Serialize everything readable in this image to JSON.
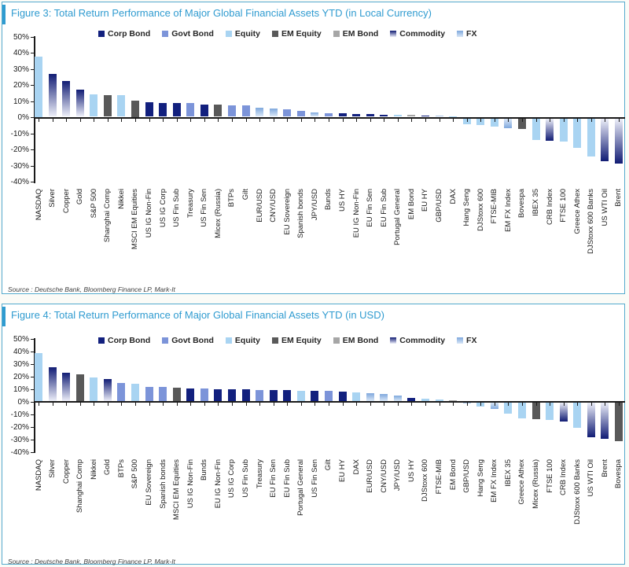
{
  "colors": {
    "corp_bond": "#12207E",
    "govt_bond": "#7C94D9",
    "equity": "#A9D4F2",
    "em_equity": "#595959",
    "em_bond": "#A6A6A6",
    "commodity_dark": "#111C74",
    "commodity_light": "#EDEFF9",
    "fx_dark": "#7FA8DD",
    "fx_light": "#D9E7F7",
    "title_blue": "#2F9BD0",
    "panel_border": "#55AACD",
    "axis_black": "#1A1A1A"
  },
  "chart_data": [
    {
      "type": "bar",
      "title": "Figure 3: Total Return Performance of Major Global Financial Assets YTD (in Local Currency)",
      "source": "Source : Deutsche Bank, Bloomberg Finance LP, Mark-It",
      "ylabel": "",
      "ylim": [
        -40,
        50
      ],
      "ytick_step": 10,
      "yticks": [
        "50%",
        "40%",
        "30%",
        "20%",
        "10%",
        "0%",
        "-10%",
        "-20%",
        "-30%",
        "-40%"
      ],
      "grid": false,
      "legend_position": "top",
      "legend": [
        "Corp Bond",
        "Govt Bond",
        "Equity",
        "EM Equity",
        "EM Bond",
        "Commodity",
        "FX"
      ],
      "points": [
        {
          "label": "NASDAQ",
          "value": 37.5,
          "category": "Equity"
        },
        {
          "label": "Silver",
          "value": 26.5,
          "category": "Commodity"
        },
        {
          "label": "Copper",
          "value": 22,
          "category": "Commodity"
        },
        {
          "label": "Gold",
          "value": 17,
          "category": "Commodity"
        },
        {
          "label": "S&P 500",
          "value": 13.7,
          "category": "Equity"
        },
        {
          "label": "Shanghai Comp",
          "value": 13.5,
          "category": "EM Equity"
        },
        {
          "label": "Nikkei",
          "value": 13.4,
          "category": "Equity"
        },
        {
          "label": "MSCI EM Equities",
          "value": 10,
          "category": "EM Equity"
        },
        {
          "label": "US IG Non-Fin",
          "value": 9,
          "category": "Corp Bond"
        },
        {
          "label": "US IG Corp",
          "value": 8.7,
          "category": "Corp Bond"
        },
        {
          "label": "US Fin Sub",
          "value": 8.5,
          "category": "Corp Bond"
        },
        {
          "label": "Treasury",
          "value": 8.4,
          "category": "Govt Bond"
        },
        {
          "label": "US Fin Sen",
          "value": 7.8,
          "category": "Corp Bond"
        },
        {
          "label": "Micex (Russia)",
          "value": 7.4,
          "category": "EM Equity"
        },
        {
          "label": "BTPs",
          "value": 7.2,
          "category": "Govt Bond"
        },
        {
          "label": "Gilt",
          "value": 7,
          "category": "Govt Bond"
        },
        {
          "label": "EUR/USD",
          "value": 5.7,
          "category": "FX"
        },
        {
          "label": "CNY/USD",
          "value": 5.2,
          "category": "FX"
        },
        {
          "label": "EU Sovereign",
          "value": 4.4,
          "category": "Govt Bond"
        },
        {
          "label": "Spanish bonds",
          "value": 3.6,
          "category": "Govt Bond"
        },
        {
          "label": "JPY/USD",
          "value": 2.9,
          "category": "FX"
        },
        {
          "label": "Bunds",
          "value": 2.4,
          "category": "Govt Bond"
        },
        {
          "label": "US HY",
          "value": 2.1,
          "category": "Corp Bond"
        },
        {
          "label": "EU IG Non-Fin",
          "value": 1.8,
          "category": "Corp Bond"
        },
        {
          "label": "EU Fin Sen",
          "value": 1.6,
          "category": "Corp Bond"
        },
        {
          "label": "EU Fin Sub",
          "value": 1.4,
          "category": "Corp Bond"
        },
        {
          "label": "Portugal General",
          "value": 1.1,
          "category": "Equity"
        },
        {
          "label": "EM Bond",
          "value": 1.0,
          "category": "EM Bond"
        },
        {
          "label": "EU HY",
          "value": 0.8,
          "category": "Corp Bond"
        },
        {
          "label": "GBP/USD",
          "value": 0.5,
          "category": "FX"
        },
        {
          "label": "DAX",
          "value": 0.2,
          "category": "Equity"
        },
        {
          "label": "Hang Seng",
          "value": -3.5,
          "category": "Equity"
        },
        {
          "label": "DJStoxx 600",
          "value": -4,
          "category": "Equity"
        },
        {
          "label": "FTSE-MIB",
          "value": -4.9,
          "category": "Equity"
        },
        {
          "label": "EM FX Index",
          "value": -6,
          "category": "FX"
        },
        {
          "label": "Bovespa",
          "value": -6.8,
          "category": "EM Equity"
        },
        {
          "label": "IBEX 35",
          "value": -13.2,
          "category": "Equity"
        },
        {
          "label": "CRB Index",
          "value": -14,
          "category": "Commodity"
        },
        {
          "label": "FTSE 100",
          "value": -14.5,
          "category": "Equity"
        },
        {
          "label": "Greece Athex",
          "value": -18.5,
          "category": "Equity"
        },
        {
          "label": "DJStoxx 600 Banks",
          "value": -23.5,
          "category": "Equity"
        },
        {
          "label": "US WTI Oil",
          "value": -26.5,
          "category": "Commodity"
        },
        {
          "label": "Brent",
          "value": -28,
          "category": "Commodity"
        }
      ]
    },
    {
      "type": "bar",
      "title": "Figure 4: Total Return Performance of Major Global Financial Assets YTD (in USD)",
      "source": "Source : Deutsche Bank, Bloomberg Finance LP, Mark-It",
      "ylabel": "",
      "ylim": [
        -40,
        50
      ],
      "ytick_step": 10,
      "yticks": [
        "50%",
        "40%",
        "30%",
        "20%",
        "10%",
        "0%",
        "-10%",
        "-20%",
        "-30%",
        "-40%"
      ],
      "grid": false,
      "legend_position": "top",
      "legend": [
        "Corp Bond",
        "Govt Bond",
        "Equity",
        "EM Equity",
        "EM Bond",
        "Commodity",
        "FX"
      ],
      "points": [
        {
          "label": "NASDAQ",
          "value": 38,
          "category": "Equity"
        },
        {
          "label": "Silver",
          "value": 27,
          "category": "Commodity"
        },
        {
          "label": "Copper",
          "value": 22.5,
          "category": "Commodity"
        },
        {
          "label": "Shanghai Comp",
          "value": 21,
          "category": "EM Equity"
        },
        {
          "label": "Nikkei",
          "value": 19,
          "category": "Equity"
        },
        {
          "label": "Gold",
          "value": 17.5,
          "category": "Commodity"
        },
        {
          "label": "BTPs",
          "value": 14.3,
          "category": "Govt Bond"
        },
        {
          "label": "S&P 500",
          "value": 13.8,
          "category": "Equity"
        },
        {
          "label": "EU Sovereign",
          "value": 11.5,
          "category": "Govt Bond"
        },
        {
          "label": "Spanish bonds",
          "value": 11,
          "category": "Govt Bond"
        },
        {
          "label": "MSCI EM Equities",
          "value": 10.8,
          "category": "EM Equity"
        },
        {
          "label": "US IG Non-Fin",
          "value": 9.8,
          "category": "Corp Bond"
        },
        {
          "label": "Bunds",
          "value": 9.7,
          "category": "Govt Bond"
        },
        {
          "label": "EU IG Non-Fin",
          "value": 9.4,
          "category": "Corp Bond"
        },
        {
          "label": "US IG Corp",
          "value": 9.2,
          "category": "Corp Bond"
        },
        {
          "label": "US Fin Sub",
          "value": 9.1,
          "category": "Corp Bond"
        },
        {
          "label": "Treasury",
          "value": 8.8,
          "category": "Govt Bond"
        },
        {
          "label": "EU Fin Sen",
          "value": 8.6,
          "category": "Corp Bond"
        },
        {
          "label": "EU Fin Sub",
          "value": 8.5,
          "category": "Corp Bond"
        },
        {
          "label": "Portugal General",
          "value": 8.2,
          "category": "Equity"
        },
        {
          "label": "US Fin Sen",
          "value": 8.0,
          "category": "Corp Bond"
        },
        {
          "label": "Gilt",
          "value": 7.9,
          "category": "Govt Bond"
        },
        {
          "label": "EU HY",
          "value": 7.3,
          "category": "Corp Bond"
        },
        {
          "label": "DAX",
          "value": 6.6,
          "category": "Equity"
        },
        {
          "label": "EUR/USD",
          "value": 6.2,
          "category": "FX"
        },
        {
          "label": "CNY/USD",
          "value": 5.6,
          "category": "FX"
        },
        {
          "label": "JPY/USD",
          "value": 4.4,
          "category": "FX"
        },
        {
          "label": "US HY",
          "value": 2.4,
          "category": "Corp Bond"
        },
        {
          "label": "DJStoxx 600",
          "value": 1.6,
          "category": "Equity"
        },
        {
          "label": "FTSE-MIB",
          "value": 1.2,
          "category": "Equity"
        },
        {
          "label": "EM Bond",
          "value": 0.8,
          "category": "EM Bond"
        },
        {
          "label": "GBP/USD",
          "value": -0.5,
          "category": "FX"
        },
        {
          "label": "Hang Seng",
          "value": -2.9,
          "category": "Equity"
        },
        {
          "label": "EM FX Index",
          "value": -5,
          "category": "FX"
        },
        {
          "label": "IBEX 35",
          "value": -9,
          "category": "Equity"
        },
        {
          "label": "Greece Athex",
          "value": -12.5,
          "category": "Equity"
        },
        {
          "label": "Micex (Russia)",
          "value": -13,
          "category": "EM Equity"
        },
        {
          "label": "FTSE 100",
          "value": -14,
          "category": "Equity"
        },
        {
          "label": "CRB Index",
          "value": -15,
          "category": "Commodity"
        },
        {
          "label": "DJStoxx 600 Banks",
          "value": -20,
          "category": "Equity"
        },
        {
          "label": "US WTI Oil",
          "value": -27.5,
          "category": "Commodity"
        },
        {
          "label": "Brent",
          "value": -28.5,
          "category": "Commodity"
        },
        {
          "label": "Bovespa",
          "value": -30.5,
          "category": "EM Equity"
        }
      ]
    }
  ]
}
